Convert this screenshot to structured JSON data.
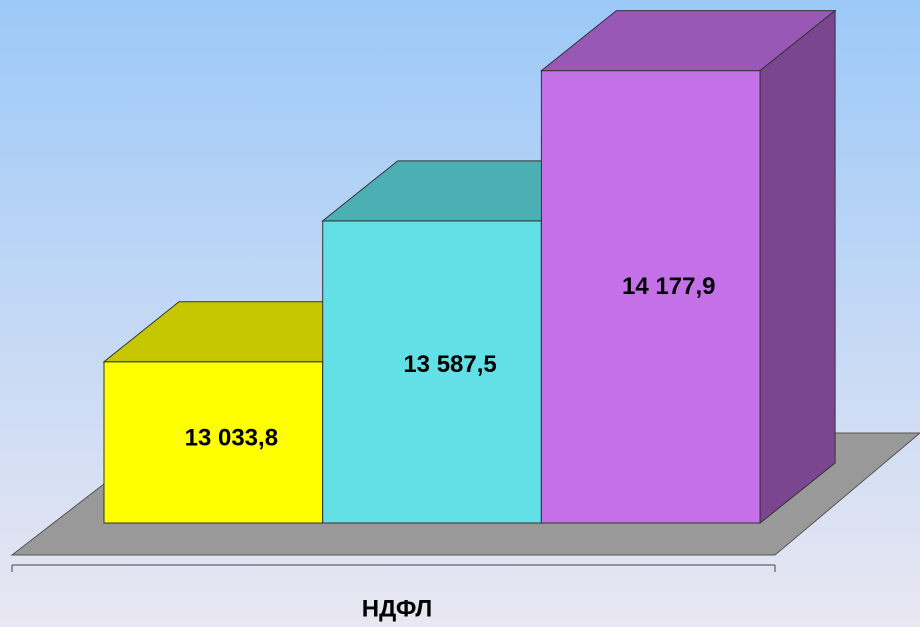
{
  "chart_data": {
    "type": "bar3d",
    "categories": [
      "НДФЛ"
    ],
    "series": [
      {
        "color": "#ffff00",
        "values": [
          13033.8
        ],
        "value_labels": [
          "13 033,8"
        ]
      },
      {
        "color": "#62e0e6",
        "values": [
          13587.5
        ],
        "value_labels": [
          "13 587,5"
        ]
      },
      {
        "color": "#c471e8",
        "values": [
          14177.9
        ],
        "value_labels": [
          "14 177,9"
        ]
      }
    ],
    "ylim": [
      12400,
      14200
    ]
  }
}
